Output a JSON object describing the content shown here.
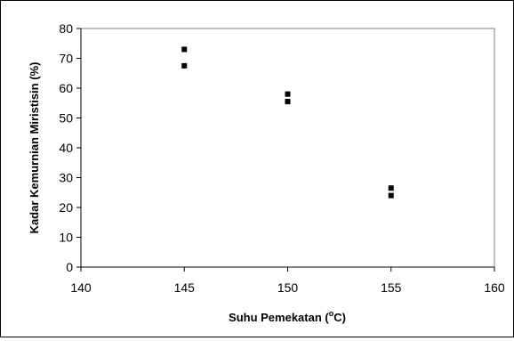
{
  "chart_data": {
    "type": "scatter",
    "title": "",
    "xlabel": "Suhu Pemekatan (",
    "xlabel_sup": "o",
    "xlabel_suffix": "C)",
    "ylabel": "Kadar Kemurnian Miristisin (%)",
    "xlim": [
      140,
      160
    ],
    "ylim": [
      0,
      80
    ],
    "x_ticks": [
      140,
      145,
      150,
      155,
      160
    ],
    "y_ticks": [
      0,
      10,
      20,
      30,
      40,
      50,
      60,
      70,
      80
    ],
    "grid": false,
    "marker_color": "#000000",
    "series": [
      {
        "points": [
          {
            "x": 145,
            "y": 73
          },
          {
            "x": 145,
            "y": 67.5
          },
          {
            "x": 150,
            "y": 58
          },
          {
            "x": 150,
            "y": 55.5
          },
          {
            "x": 155,
            "y": 26.5
          },
          {
            "x": 155,
            "y": 24
          }
        ]
      }
    ]
  }
}
